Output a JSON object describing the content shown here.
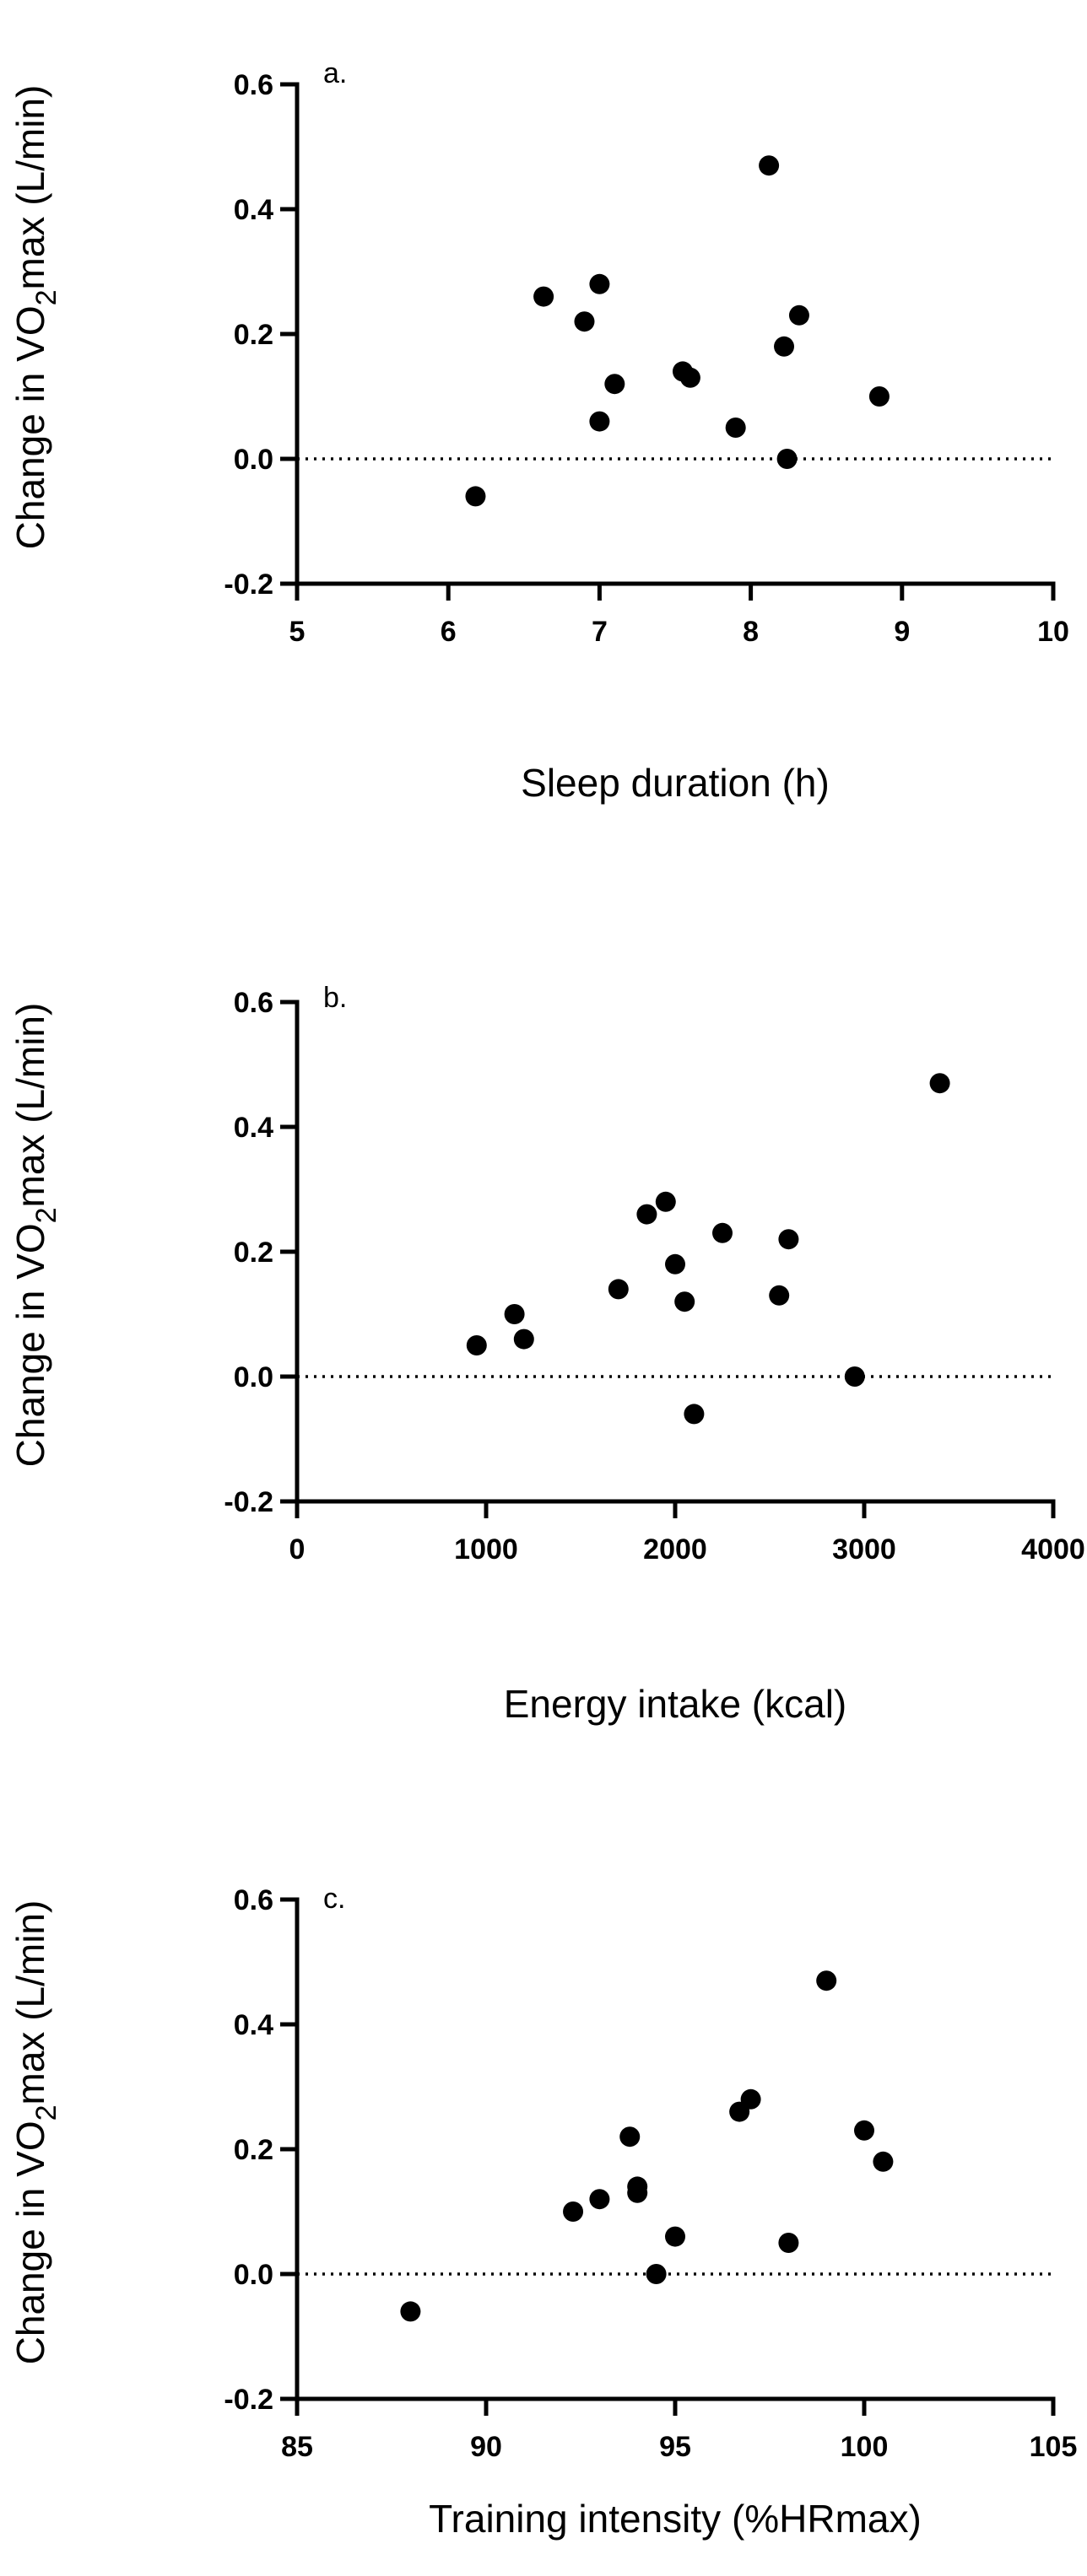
{
  "chart_data": [
    {
      "type": "scatter",
      "panel_label": "a.",
      "xlabel": "Sleep duration (h)",
      "ylabel_prefix": "Change in VO",
      "ylabel_sub": "2",
      "ylabel_suffix": "max (L/min)",
      "xlim": [
        5,
        10
      ],
      "ylim": [
        -0.2,
        0.6
      ],
      "xticks": [
        5,
        6,
        7,
        8,
        9,
        10
      ],
      "xtick_labels": [
        "5",
        "6",
        "7",
        "8",
        "9",
        "10"
      ],
      "yticks": [
        -0.2,
        0.0,
        0.2,
        0.4,
        0.6
      ],
      "ytick_labels": [
        "-0.2",
        "0.0",
        "0.2",
        "0.4",
        "0.6"
      ],
      "reference_line_y": 0,
      "x": [
        6.18,
        6.63,
        6.9,
        7.0,
        7.0,
        7.1,
        7.55,
        7.6,
        7.9,
        8.12,
        8.22,
        8.24,
        8.32,
        8.85
      ],
      "y": [
        -0.06,
        0.26,
        0.22,
        0.28,
        0.06,
        0.12,
        0.14,
        0.13,
        0.05,
        0.47,
        0.18,
        0.0,
        0.23,
        0.1
      ]
    },
    {
      "type": "scatter",
      "panel_label": "b.",
      "xlabel": "Energy intake (kcal)",
      "ylabel_prefix": "Change in VO",
      "ylabel_sub": "2",
      "ylabel_suffix": "max (L/min)",
      "xlim": [
        0,
        4000
      ],
      "ylim": [
        -0.2,
        0.6
      ],
      "xticks": [
        0,
        1000,
        2000,
        3000,
        4000
      ],
      "xtick_labels": [
        "0",
        "1000",
        "2000",
        "3000",
        "4000"
      ],
      "yticks": [
        -0.2,
        0.0,
        0.2,
        0.4,
        0.6
      ],
      "ytick_labels": [
        "-0.2",
        "0.0",
        "0.2",
        "0.4",
        "0.6"
      ],
      "reference_line_y": 0,
      "x": [
        950,
        1150,
        1200,
        1700,
        1850,
        1950,
        2000,
        2050,
        2100,
        2250,
        2550,
        2600,
        2950,
        3400
      ],
      "y": [
        0.05,
        0.1,
        0.06,
        0.14,
        0.26,
        0.28,
        0.18,
        0.12,
        -0.06,
        0.23,
        0.13,
        0.22,
        0.0,
        0.47
      ]
    },
    {
      "type": "scatter",
      "panel_label": "c.",
      "xlabel": "Training intensity (%HRmax)",
      "ylabel_prefix": "Change in VO",
      "ylabel_sub": "2",
      "ylabel_suffix": "max (L/min)",
      "xlim": [
        85,
        105
      ],
      "ylim": [
        -0.2,
        0.6
      ],
      "xticks": [
        85,
        90,
        95,
        100,
        105
      ],
      "xtick_labels": [
        "85",
        "90",
        "95",
        "100",
        "105"
      ],
      "yticks": [
        -0.2,
        0.0,
        0.2,
        0.4,
        0.6
      ],
      "ytick_labels": [
        "-0.2",
        "0.0",
        "0.2",
        "0.4",
        "0.6"
      ],
      "reference_line_y": 0,
      "x": [
        88.0,
        92.3,
        93.0,
        93.8,
        94.0,
        94.0,
        94.5,
        95.0,
        96.7,
        97.0,
        98.0,
        99.0,
        100.0,
        100.5
      ],
      "y": [
        -0.06,
        0.1,
        0.12,
        0.22,
        0.14,
        0.13,
        0.0,
        0.06,
        0.26,
        0.28,
        0.05,
        0.47,
        0.23,
        0.18
      ]
    }
  ]
}
